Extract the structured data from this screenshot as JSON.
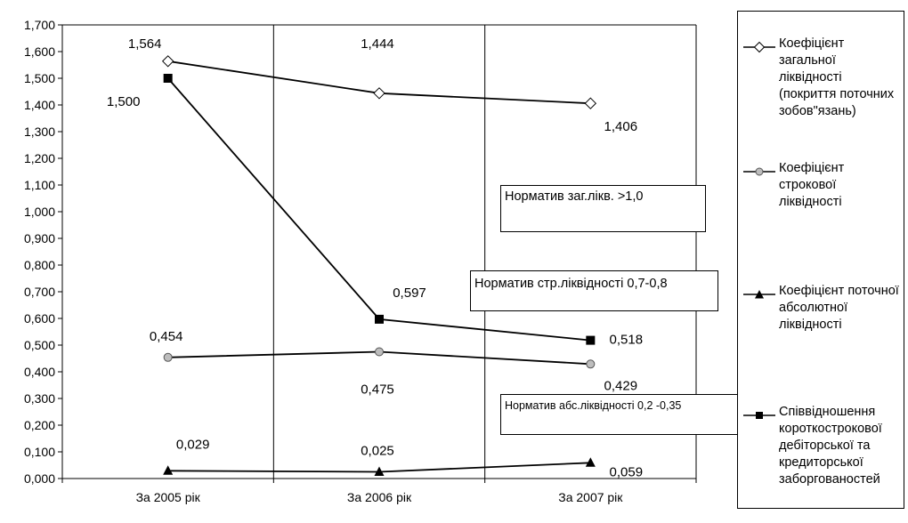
{
  "chart_data": {
    "type": "line",
    "categories": [
      "За 2005 рік",
      "За 2006 рік",
      "За 2007 рік"
    ],
    "ylim": [
      0,
      1.7
    ],
    "y_ticks": [
      "0,000",
      "0,100",
      "0,200",
      "0,300",
      "0,400",
      "0,500",
      "0,600",
      "0,700",
      "0,800",
      "0,900",
      "1,000",
      "1,100",
      "1,200",
      "1,300",
      "1,400",
      "1,500",
      "1,600",
      "1,700"
    ],
    "grid": "vertical",
    "legend_position": "right",
    "series": [
      {
        "name": "Коефіцієнт загальної ліквідності (покриття поточних зобов\"язань)",
        "marker": "diamond",
        "values": [
          1.564,
          1.444,
          1.406
        ],
        "labels": [
          "1,564",
          "1,444",
          "1,406"
        ]
      },
      {
        "name": "Коефіцієнт строкової ліквідності",
        "marker": "circle",
        "values": [
          0.454,
          0.475,
          0.429
        ],
        "labels": [
          "0,454",
          "0,475",
          "0,429"
        ]
      },
      {
        "name": "Коефіцієнт поточної абсолютної ліквідності",
        "marker": "triangle",
        "values": [
          0.029,
          0.025,
          0.059
        ],
        "labels": [
          "0,029",
          "0,025",
          "0,059"
        ]
      },
      {
        "name": "Співвідношення короткострокової дебіторської та кредиторської заборгованостей",
        "marker": "square",
        "values": [
          1.5,
          0.597,
          0.518
        ],
        "labels": [
          "1,500",
          "0,597",
          "0,518"
        ]
      }
    ],
    "annotations": [
      "Норматив заг.лікв. >1,0",
      "Норматив стр.ліквідності 0,7-0,8",
      "Норматив абс.ліквідності 0,2 -0,35"
    ]
  }
}
